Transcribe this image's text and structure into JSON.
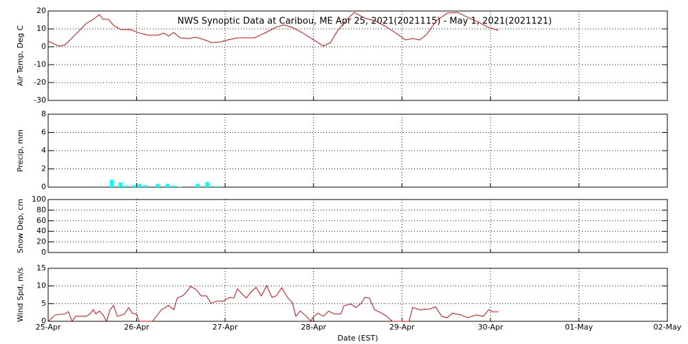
{
  "chart_data": [
    {
      "type": "line",
      "title": "NWS Synoptic Data at Caribou, ME   Apr 25, 2021(2021115) - May  1, 2021(2021121)",
      "y_label": "Air Temp, Deg C",
      "color": "#e00000",
      "x": [
        0,
        0.12,
        0.19,
        0.31,
        0.43,
        0.51,
        0.58,
        0.62,
        0.68,
        0.74,
        0.82,
        0.93,
        1.01,
        1.13,
        1.24,
        1.31,
        1.36,
        1.42,
        1.49,
        1.59,
        1.67,
        1.75,
        1.85,
        1.94,
        2.06,
        2.14,
        2.33,
        2.45,
        2.57,
        2.66,
        2.76,
        2.88,
        2.99,
        3.11,
        3.19,
        3.27,
        3.38,
        3.46,
        3.58,
        3.69,
        3.81,
        3.93,
        4.04,
        4.12,
        4.2,
        4.28,
        4.39,
        4.51,
        4.63,
        4.74,
        4.86,
        4.98,
        5.09
      ],
      "values": [
        3.1,
        0.4,
        1,
        7,
        13,
        15.4,
        18,
        15.4,
        15.4,
        12,
        9.6,
        9.6,
        8,
        6.5,
        6.5,
        7.7,
        6,
        8,
        5,
        4.6,
        5.4,
        4.2,
        2.3,
        2.7,
        4.2,
        5,
        5,
        7.7,
        10.8,
        12.3,
        10.8,
        7.7,
        4.2,
        0.4,
        2.3,
        8.8,
        15.4,
        19.2,
        16,
        14.6,
        11.5,
        7.7,
        3.8,
        4.6,
        3.8,
        7,
        14.6,
        18.8,
        19.2,
        16.5,
        13.8,
        10.8,
        9.2
      ],
      "ylim": [
        -30,
        20
      ],
      "yticks": [
        -30,
        -20,
        -10,
        0,
        10,
        20
      ],
      "grid": true
    },
    {
      "type": "bar",
      "y_label": "Precip, mm",
      "color": "#00ffff",
      "x": [
        0.72,
        0.82,
        0.88,
        0.97,
        1.03,
        1.1,
        1.24,
        1.35,
        1.42,
        1.49,
        1.69,
        1.8,
        1.9
      ],
      "values": [
        0.8,
        0.5,
        0.15,
        0.2,
        0.35,
        0.2,
        0.35,
        0.35,
        0.15,
        0.05,
        0.35,
        0.55,
        0.1
      ],
      "ylim": [
        0,
        8
      ],
      "yticks": [
        0,
        2,
        4,
        6,
        8
      ],
      "grid": true
    },
    {
      "type": "line",
      "y_label": "Snow Dep, cm",
      "color": "#e00000",
      "x": [],
      "values": [],
      "ylim": [
        0,
        100
      ],
      "yticks": [
        0,
        20,
        40,
        60,
        80,
        100
      ],
      "grid": true
    },
    {
      "type": "line",
      "y_label": "Wind Spd, m/s",
      "x_label": "Date (EST)",
      "color": "#e00000",
      "x": [
        0,
        0.08,
        0.19,
        0.23,
        0.27,
        0.31,
        0.43,
        0.47,
        0.51,
        0.54,
        0.58,
        0.62,
        0.66,
        0.7,
        0.74,
        0.78,
        0.86,
        0.91,
        0.95,
        1.0,
        1.03,
        1.09,
        1.18,
        1.28,
        1.36,
        1.42,
        1.46,
        1.52,
        1.56,
        1.61,
        1.67,
        1.73,
        1.79,
        1.84,
        1.91,
        1.98,
        2.05,
        2.1,
        2.14,
        2.19,
        2.24,
        2.29,
        2.35,
        2.41,
        2.47,
        2.53,
        2.58,
        2.64,
        2.71,
        2.76,
        2.8,
        2.85,
        2.92,
        2.97,
        2.99,
        3.05,
        3.11,
        3.17,
        3.23,
        3.31,
        3.34,
        3.42,
        3.48,
        3.54,
        3.58,
        3.63,
        3.69,
        3.77,
        3.83,
        3.89,
        3.93,
        4.08,
        4.12,
        4.2,
        4.32,
        4.38,
        4.45,
        4.51,
        4.57,
        4.67,
        4.74,
        4.84,
        4.92,
        4.98,
        5.02,
        5.09
      ],
      "values": [
        0,
        1.8,
        2.1,
        2.7,
        0,
        1.4,
        1.4,
        2,
        3.3,
        2.1,
        2.9,
        1.8,
        0,
        3.3,
        4.5,
        1.4,
        2,
        3.9,
        2.3,
        2,
        0,
        0,
        0,
        3.3,
        4.5,
        3.3,
        6.6,
        7.2,
        8.2,
        9.9,
        9,
        7.2,
        7.2,
        5.1,
        5.7,
        5.7,
        6.8,
        6.6,
        9.2,
        7.8,
        6.6,
        8.2,
        9.6,
        7.2,
        10.1,
        6.8,
        7.2,
        9.5,
        6.6,
        5.3,
        1.4,
        2.9,
        1.4,
        0,
        1,
        2.3,
        1.4,
        2.9,
        2.1,
        2.1,
        4.3,
        4.9,
        3.9,
        5.1,
        6.8,
        6.6,
        3.3,
        2.3,
        1.4,
        0,
        0,
        0,
        3.9,
        3.3,
        3.5,
        4.1,
        1.4,
        1,
        2.3,
        1.8,
        1,
        1.8,
        1.4,
        3.3,
        2.7,
        2.7
      ],
      "ylim": [
        0,
        15
      ],
      "yticks": [
        0,
        5,
        10,
        15
      ],
      "grid": true,
      "xlim": [
        0,
        7
      ],
      "xticks": [
        {
          "value": 0,
          "label": "25-Apr"
        },
        {
          "value": 1,
          "label": "26-Apr"
        },
        {
          "value": 2,
          "label": "27-Apr"
        },
        {
          "value": 3,
          "label": "28-Apr"
        },
        {
          "value": 4,
          "label": "29-Apr"
        },
        {
          "value": 5,
          "label": "30-Apr"
        },
        {
          "value": 6,
          "label": "01-May"
        },
        {
          "value": 7,
          "label": "02-May"
        }
      ]
    }
  ]
}
